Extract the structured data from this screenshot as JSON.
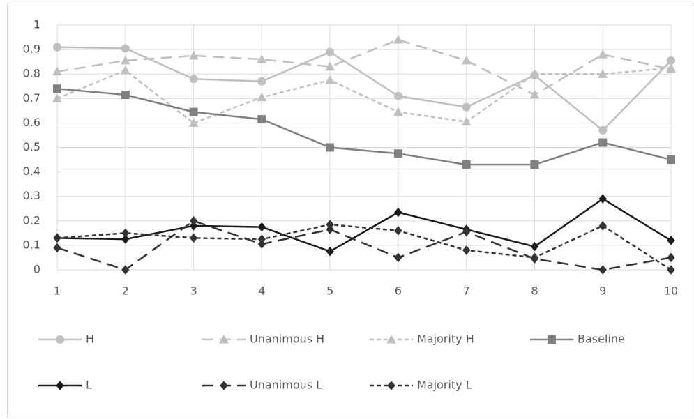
{
  "chart_data": {
    "type": "line",
    "x": [
      1,
      2,
      3,
      4,
      5,
      6,
      7,
      8,
      9,
      10
    ],
    "xlim": [
      1,
      10
    ],
    "xticks": [
      1,
      2,
      3,
      4,
      5,
      6,
      7,
      8,
      9,
      10
    ],
    "ylim": [
      0,
      1
    ],
    "yticks": [
      0,
      0.1,
      0.2,
      0.3,
      0.4,
      0.5,
      0.6,
      0.7,
      0.8,
      0.9,
      1
    ],
    "grid": true,
    "legend": "bottom",
    "series": [
      {
        "name": "H",
        "color": "#bfbfbf",
        "marker": "circle",
        "dash": "solid",
        "values": [
          0.91,
          0.905,
          0.78,
          0.77,
          0.89,
          0.71,
          0.665,
          0.795,
          0.57,
          0.855
        ]
      },
      {
        "name": "Unanimous H",
        "color": "#bfbfbf",
        "marker": "triangle",
        "dash": "long-dash",
        "values": [
          0.81,
          0.855,
          0.875,
          0.86,
          0.83,
          0.94,
          0.855,
          0.715,
          0.88,
          0.82
        ]
      },
      {
        "name": "Majority H",
        "color": "#bfbfbf",
        "marker": "triangle",
        "dash": "short-dash",
        "values": [
          0.7,
          0.815,
          0.6,
          0.705,
          0.775,
          0.645,
          0.605,
          0.8,
          0.8,
          0.825
        ]
      },
      {
        "name": "Baseline",
        "color": "#808080",
        "marker": "square",
        "dash": "solid",
        "values": [
          0.74,
          0.715,
          0.645,
          0.615,
          0.5,
          0.475,
          0.43,
          0.43,
          0.52,
          0.45
        ]
      },
      {
        "name": "L",
        "color": "#1a1a1a",
        "marker": "diamond",
        "dash": "solid",
        "values": [
          0.13,
          0.125,
          0.18,
          0.175,
          0.075,
          0.235,
          0.165,
          0.095,
          0.29,
          0.12
        ]
      },
      {
        "name": "Unanimous L",
        "color": "#333333",
        "marker": "diamond",
        "dash": "long-dash",
        "values": [
          0.09,
          0.0,
          0.2,
          0.105,
          0.165,
          0.05,
          0.155,
          0.045,
          0.0,
          0.05
        ]
      },
      {
        "name": "Majority L",
        "color": "#333333",
        "marker": "diamond",
        "dash": "short-dash",
        "values": [
          0.13,
          0.15,
          0.13,
          0.125,
          0.185,
          0.16,
          0.08,
          0.05,
          0.18,
          0.0
        ]
      }
    ]
  }
}
